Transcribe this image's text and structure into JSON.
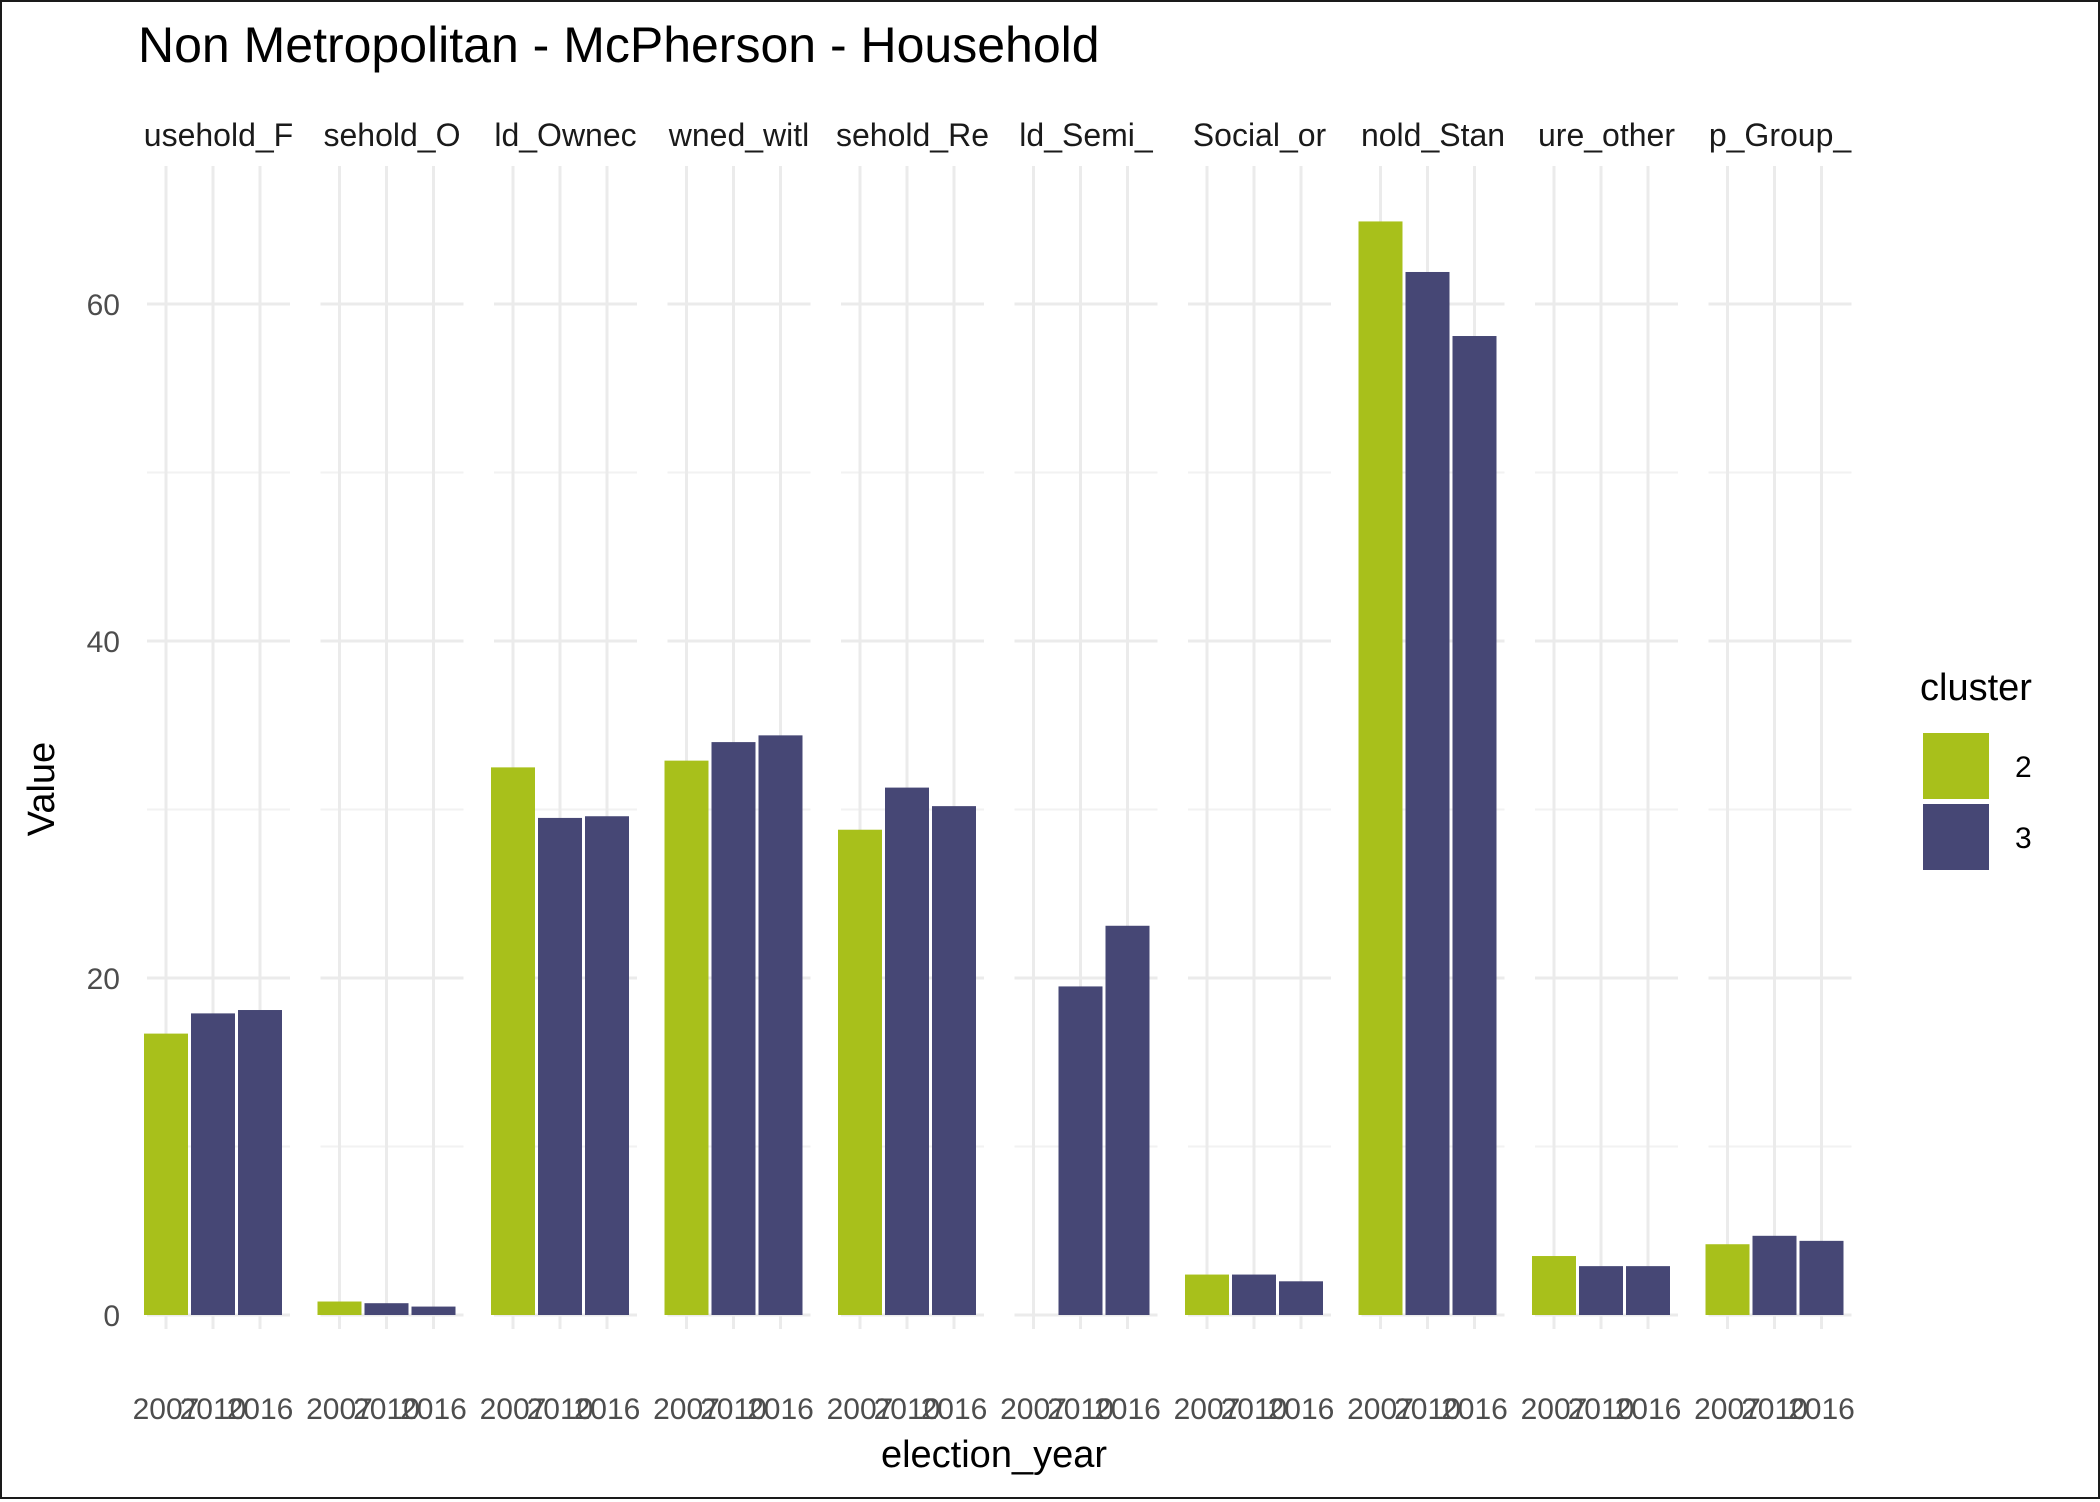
{
  "chart_data": {
    "type": "bar",
    "title": "Non Metropolitan - McPherson - Household",
    "xlabel": "election_year",
    "ylabel": "Value",
    "ylim": [
      0,
      68
    ],
    "y_ticks": [
      0,
      20,
      40,
      60
    ],
    "grid": true,
    "legend_position": "right",
    "legend_title": "cluster",
    "legend": [
      {
        "label": "2",
        "color": "#a8c01b"
      },
      {
        "label": "3",
        "color": "#464775"
      }
    ],
    "facets": [
      {
        "label": "usehold_F",
        "bars": [
          {
            "year": "2007",
            "cluster": "2",
            "value": 16.7
          },
          {
            "year": "2010",
            "cluster": "3",
            "value": 17.9
          },
          {
            "year": "2016",
            "cluster": "3",
            "value": 18.1
          }
        ]
      },
      {
        "label": "sehold_O",
        "bars": [
          {
            "year": "2007",
            "cluster": "2",
            "value": 0.8
          },
          {
            "year": "2010",
            "cluster": "3",
            "value": 0.7
          },
          {
            "year": "2016",
            "cluster": "3",
            "value": 0.5
          }
        ]
      },
      {
        "label": "ld_Ownec",
        "bars": [
          {
            "year": "2007",
            "cluster": "2",
            "value": 32.5
          },
          {
            "year": "2010",
            "cluster": "3",
            "value": 29.5
          },
          {
            "year": "2016",
            "cluster": "3",
            "value": 29.6
          }
        ]
      },
      {
        "label": "wned_witl",
        "bars": [
          {
            "year": "2007",
            "cluster": "2",
            "value": 32.9
          },
          {
            "year": "2010",
            "cluster": "3",
            "value": 34.0
          },
          {
            "year": "2016",
            "cluster": "3",
            "value": 34.4
          }
        ]
      },
      {
        "label": "sehold_Re",
        "bars": [
          {
            "year": "2007",
            "cluster": "2",
            "value": 28.8
          },
          {
            "year": "2010",
            "cluster": "3",
            "value": 31.3
          },
          {
            "year": "2016",
            "cluster": "3",
            "value": 30.2
          }
        ]
      },
      {
        "label": "ld_Semi_",
        "bars": [
          {
            "year": "2010",
            "cluster": "3",
            "value": 19.5
          },
          {
            "year": "2016",
            "cluster": "3",
            "value": 23.1
          }
        ]
      },
      {
        "label": "Social_or",
        "bars": [
          {
            "year": "2007",
            "cluster": "2",
            "value": 2.4
          },
          {
            "year": "2010",
            "cluster": "3",
            "value": 2.4
          },
          {
            "year": "2016",
            "cluster": "3",
            "value": 2.0
          }
        ]
      },
      {
        "label": "nold_Stan",
        "bars": [
          {
            "year": "2007",
            "cluster": "2",
            "value": 64.9
          },
          {
            "year": "2010",
            "cluster": "3",
            "value": 61.9
          },
          {
            "year": "2016",
            "cluster": "3",
            "value": 58.1
          }
        ]
      },
      {
        "label": "ure_other",
        "bars": [
          {
            "year": "2007",
            "cluster": "2",
            "value": 3.5
          },
          {
            "year": "2010",
            "cluster": "3",
            "value": 2.9
          },
          {
            "year": "2016",
            "cluster": "3",
            "value": 2.9
          }
        ]
      },
      {
        "label": "p_Group_",
        "bars": [
          {
            "year": "2007",
            "cluster": "2",
            "value": 4.2
          },
          {
            "year": "2010",
            "cluster": "3",
            "value": 4.7
          },
          {
            "year": "2016",
            "cluster": "3",
            "value": 4.4
          }
        ]
      }
    ],
    "x_categories": [
      "2007",
      "2010",
      "2016"
    ]
  }
}
